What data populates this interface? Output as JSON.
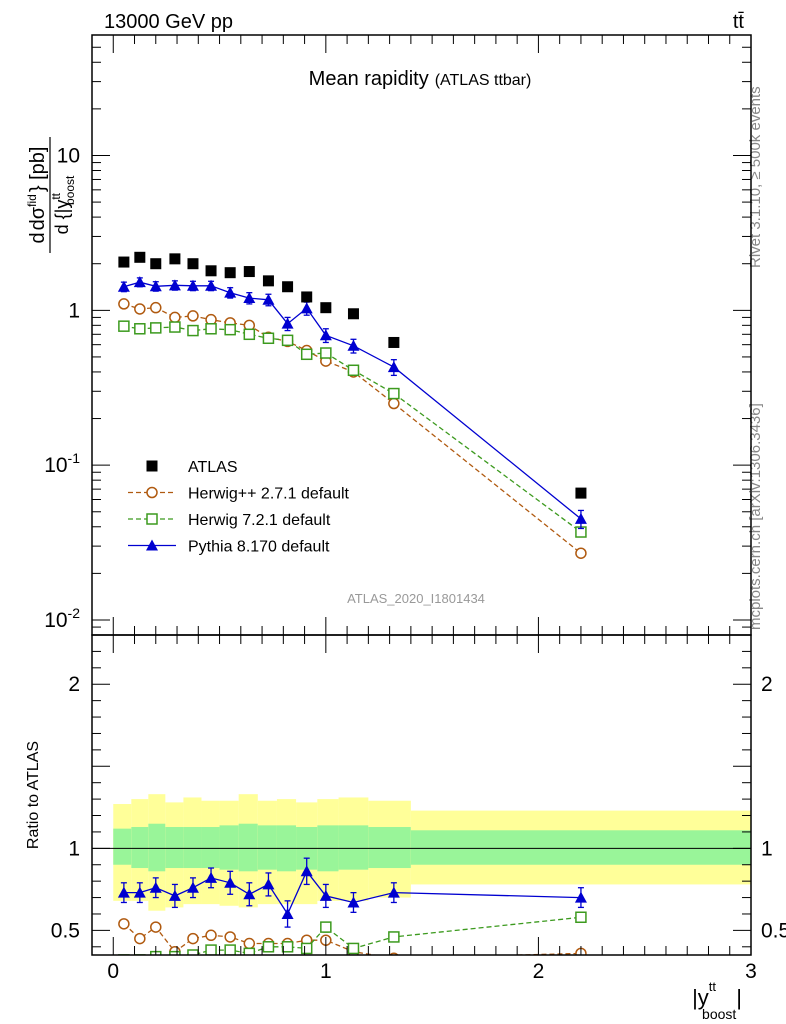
{
  "header": {
    "left": "13000 GeV pp",
    "right": "tt̄",
    "plot_title": "Mean rapidity",
    "plot_subtitle": "(ATLAS ttbar)",
    "side_top": "Rivet 3.1.10, ≥ 500k events",
    "side_bottom": "mcplots.cern.ch [arXiv:1306.3436]",
    "analysis": "ATLAS_2020_I1801434"
  },
  "colors": {
    "atlas": "#000000",
    "herwig271": "#b05a10",
    "herwig721": "#3c9a1e",
    "pythia": "#0000d0",
    "band_inner": "#99f599",
    "band_outer": "#ffff99"
  },
  "chart_data": [
    {
      "type": "scatter",
      "panel": "main",
      "ylabel_main": "dσ",
      "ylabel_sup": "fid",
      "ylabel_den": "d {|y",
      "ylabel_den_sup": "tt",
      "ylabel_den_sub": "boost",
      "ylabel_unit": "} [pb]",
      "yscale": "log",
      "ylim": [
        0.008,
        60
      ],
      "xlim": [
        -0.1,
        3.0
      ],
      "yticks": [
        {
          "label": "10",
          "sup": "-2",
          "value": 0.01
        },
        {
          "label": "10",
          "sup": "-1",
          "value": 0.1
        },
        {
          "label": "1",
          "sup": "",
          "value": 1
        },
        {
          "label": "10",
          "sup": "",
          "value": 10
        }
      ],
      "x": [
        0.05,
        0.125,
        0.2,
        0.29,
        0.375,
        0.46,
        0.55,
        0.64,
        0.73,
        0.82,
        0.91,
        1.0,
        1.13,
        1.32,
        2.2
      ],
      "series": [
        {
          "name": "ATLAS",
          "marker": "square",
          "values": [
            2.05,
            2.2,
            2.0,
            2.15,
            2.0,
            1.8,
            1.75,
            1.78,
            1.55,
            1.42,
            1.22,
            1.04,
            0.95,
            0.62,
            0.066
          ],
          "errors": []
        },
        {
          "name": "Herwig++ 2.7.1 default",
          "marker": "circle-open",
          "values": [
            1.1,
            1.02,
            1.04,
            0.9,
            0.92,
            0.87,
            0.83,
            0.8,
            0.67,
            0.63,
            0.55,
            0.47,
            0.4,
            0.25,
            0.027
          ],
          "errors": [
            0.03,
            0.03,
            0.03,
            0.03,
            0.03,
            0.03,
            0.03,
            0.03,
            0.03,
            0.03,
            0.03,
            0.02,
            0.02,
            0.01,
            0.001
          ]
        },
        {
          "name": "Herwig 7.2.1 default",
          "marker": "square-open",
          "values": [
            0.79,
            0.76,
            0.77,
            0.78,
            0.74,
            0.76,
            0.75,
            0.7,
            0.66,
            0.64,
            0.52,
            0.53,
            0.41,
            0.29,
            0.037
          ],
          "errors": [
            0.02,
            0.02,
            0.02,
            0.02,
            0.02,
            0.02,
            0.02,
            0.02,
            0.02,
            0.02,
            0.02,
            0.02,
            0.02,
            0.01,
            0.002
          ]
        },
        {
          "name": "Pythia 8.170 default",
          "marker": "triangle",
          "values": [
            1.42,
            1.52,
            1.43,
            1.45,
            1.44,
            1.44,
            1.3,
            1.2,
            1.17,
            0.82,
            1.03,
            0.69,
            0.59,
            0.43,
            0.045
          ],
          "errors": [
            0.1,
            0.1,
            0.1,
            0.1,
            0.1,
            0.1,
            0.1,
            0.1,
            0.1,
            0.08,
            0.1,
            0.07,
            0.06,
            0.05,
            0.006
          ]
        }
      ]
    },
    {
      "type": "scatter",
      "panel": "ratio",
      "ylabel": "Ratio to ATLAS",
      "xlabel": "|y",
      "xlabel_sup": "tt",
      "xlabel_sub": "boost",
      "xlabel_end": "|",
      "ylim": [
        0.35,
        2.3
      ],
      "xlim": [
        -0.1,
        3.0
      ],
      "yticks": [
        {
          "label": "0.5",
          "value": 0.5
        },
        {
          "label": "1",
          "value": 1
        },
        {
          "label": "2",
          "value": 2
        }
      ],
      "xticks": [
        {
          "label": "0",
          "value": 0
        },
        {
          "label": "1",
          "value": 1
        },
        {
          "label": "2",
          "value": 2
        },
        {
          "label": "3",
          "value": 3
        }
      ],
      "bands": [
        {
          "x_low": 0.0,
          "x_high": 0.085,
          "inner": [
            0.9,
            1.12
          ],
          "outer": [
            0.68,
            1.27
          ]
        },
        {
          "x_low": 0.085,
          "x_high": 0.165,
          "inner": [
            0.88,
            1.13
          ],
          "outer": [
            0.68,
            1.3
          ]
        },
        {
          "x_low": 0.165,
          "x_high": 0.245,
          "inner": [
            0.86,
            1.15
          ],
          "outer": [
            0.62,
            1.33
          ]
        },
        {
          "x_low": 0.245,
          "x_high": 0.33,
          "inner": [
            0.88,
            1.13
          ],
          "outer": [
            0.64,
            1.28
          ]
        },
        {
          "x_low": 0.33,
          "x_high": 0.415,
          "inner": [
            0.88,
            1.13
          ],
          "outer": [
            0.66,
            1.31
          ]
        },
        {
          "x_low": 0.415,
          "x_high": 0.5,
          "inner": [
            0.88,
            1.13
          ],
          "outer": [
            0.66,
            1.29
          ]
        },
        {
          "x_low": 0.5,
          "x_high": 0.59,
          "inner": [
            0.87,
            1.14
          ],
          "outer": [
            0.65,
            1.29
          ]
        },
        {
          "x_low": 0.59,
          "x_high": 0.68,
          "inner": [
            0.86,
            1.15
          ],
          "outer": [
            0.64,
            1.33
          ]
        },
        {
          "x_low": 0.68,
          "x_high": 0.77,
          "inner": [
            0.87,
            1.14
          ],
          "outer": [
            0.66,
            1.29
          ]
        },
        {
          "x_low": 0.77,
          "x_high": 0.86,
          "inner": [
            0.86,
            1.14
          ],
          "outer": [
            0.66,
            1.3
          ]
        },
        {
          "x_low": 0.86,
          "x_high": 0.96,
          "inner": [
            0.87,
            1.13
          ],
          "outer": [
            0.66,
            1.28
          ]
        },
        {
          "x_low": 0.96,
          "x_high": 1.06,
          "inner": [
            0.86,
            1.14
          ],
          "outer": [
            0.68,
            1.3
          ]
        },
        {
          "x_low": 1.06,
          "x_high": 1.2,
          "inner": [
            0.87,
            1.14
          ],
          "outer": [
            0.68,
            1.31
          ]
        },
        {
          "x_low": 1.2,
          "x_high": 1.4,
          "inner": [
            0.88,
            1.13
          ],
          "outer": [
            0.7,
            1.29
          ]
        },
        {
          "x_low": 1.4,
          "x_high": 3.0,
          "inner": [
            0.9,
            1.11
          ],
          "outer": [
            0.78,
            1.23
          ]
        }
      ],
      "x": [
        0.05,
        0.125,
        0.2,
        0.29,
        0.375,
        0.46,
        0.55,
        0.64,
        0.73,
        0.82,
        0.91,
        1.0,
        1.13,
        1.32,
        2.2
      ],
      "series": [
        {
          "name": "Herwig++ 2.7.1 default",
          "marker": "circle-open",
          "values": [
            0.54,
            0.45,
            0.52,
            0.37,
            0.45,
            0.47,
            0.46,
            0.42,
            0.42,
            0.42,
            0.44,
            0.44,
            0.37,
            0.33,
            0.36
          ],
          "errors": [
            0.02,
            0.02,
            0.02,
            0.02,
            0.02,
            0.02,
            0.02,
            0.02,
            0.02,
            0.02,
            0.02,
            0.02,
            0.02,
            0.02,
            0.02
          ]
        },
        {
          "name": "Herwig 7.2.1 default",
          "marker": "square-open",
          "values": [
            0.32,
            0.32,
            0.34,
            0.34,
            0.35,
            0.38,
            0.38,
            0.36,
            0.4,
            0.4,
            0.39,
            0.52,
            0.39,
            0.46,
            0.58
          ],
          "errors": [
            0.02,
            0.02,
            0.02,
            0.02,
            0.02,
            0.02,
            0.02,
            0.02,
            0.02,
            0.02,
            0.02,
            0.03,
            0.02,
            0.02,
            0.03
          ]
        },
        {
          "name": "Pythia 8.170 default",
          "marker": "triangle",
          "values": [
            0.73,
            0.73,
            0.76,
            0.71,
            0.76,
            0.82,
            0.79,
            0.72,
            0.78,
            0.6,
            0.86,
            0.71,
            0.67,
            0.73,
            0.7
          ],
          "errors": [
            0.06,
            0.06,
            0.06,
            0.07,
            0.06,
            0.06,
            0.07,
            0.07,
            0.07,
            0.08,
            0.08,
            0.07,
            0.06,
            0.06,
            0.06
          ]
        }
      ]
    }
  ]
}
